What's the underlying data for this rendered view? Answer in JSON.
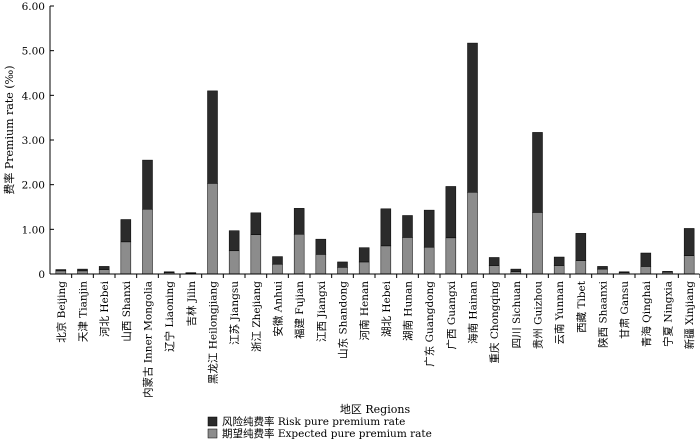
{
  "chart_data": {
    "type": "bar",
    "stacked": true,
    "ylabel": "费率 Premium rate (‰)",
    "xlabel": "地区 Regions",
    "ylim": [
      0,
      6
    ],
    "yticks": [
      "0",
      "1.00",
      "2.00",
      "3.00",
      "4.00",
      "5.00",
      "6.00"
    ],
    "ytick_values": [
      0,
      1,
      2,
      3,
      4,
      5,
      6
    ],
    "grid": false,
    "legend_position": "bottom",
    "categories": [
      "北京 Beijing",
      "天津 Tianjin",
      "河北 Hebei",
      "山西 Shanxi",
      "内蒙古 Inner Mongolia",
      "辽宁 Liaoning",
      "吉林 Jilin",
      "黑龙江 Heilongjiang",
      "江苏 Jiangsu",
      "浙江 Zhejiang",
      "安徽 Anhui",
      "福建 Fujian",
      "江西 Jiangxi",
      "山东 Shandong",
      "河南 Henan",
      "湖北 Hebei",
      "湖南 Hunan",
      "广东 Guangdong",
      "广西 Guangxi",
      "海南 Hainan",
      "重庆 Chongqing",
      "四川 Sichuan",
      "贵州 Guizhou",
      "云南 Yunnan",
      "西藏 Tibet",
      "陕西 Shaanxi",
      "甘肃 Gansu",
      "青海 Qinghai",
      "宁夏 Ningxia",
      "新疆 Xinjiang"
    ],
    "series": [
      {
        "name": "期望纯费率 Expected pure premium rate",
        "color": "#8c8c8c",
        "values": [
          0.07,
          0.07,
          0.1,
          0.72,
          1.45,
          0.03,
          0.02,
          2.03,
          0.52,
          0.88,
          0.22,
          0.89,
          0.44,
          0.15,
          0.27,
          0.63,
          0.82,
          0.6,
          0.81,
          1.83,
          0.19,
          0.05,
          1.38,
          0.19,
          0.3,
          0.11,
          0.03,
          0.17,
          0.04,
          0.41
        ]
      },
      {
        "name": "风险纯费率 Risk pure premium rate",
        "color": "#2b2b2b",
        "values": [
          0.03,
          0.04,
          0.07,
          0.5,
          1.1,
          0.02,
          0.01,
          2.07,
          0.45,
          0.49,
          0.17,
          0.58,
          0.34,
          0.12,
          0.32,
          0.83,
          0.49,
          0.83,
          1.15,
          3.34,
          0.18,
          0.06,
          1.79,
          0.19,
          0.61,
          0.06,
          0.02,
          0.3,
          0.02,
          0.61
        ]
      }
    ],
    "legend_order": [
      1,
      0
    ]
  }
}
